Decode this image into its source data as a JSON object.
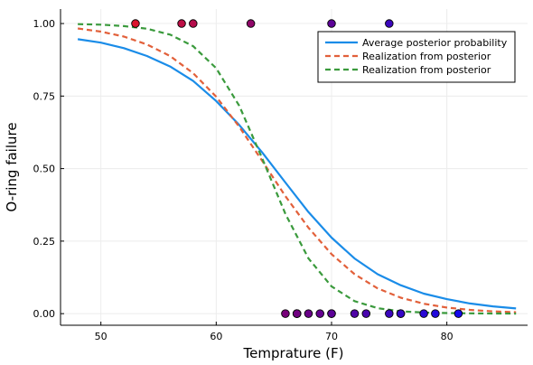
{
  "chart_data": {
    "type": "line",
    "title": "",
    "xlabel": "Temprature (F)",
    "ylabel": "O-ring failure",
    "xlim": [
      46.5,
      87.0
    ],
    "ylim": [
      -0.04,
      1.05
    ],
    "xticks": [
      50,
      60,
      70,
      80
    ],
    "yticks": [
      0.0,
      0.25,
      0.5,
      0.75,
      1.0
    ],
    "ytick_labels": [
      "0.00",
      "0.25",
      "0.50",
      "0.75",
      "1.00"
    ],
    "grid": true,
    "legend_position": "top-right",
    "series": [
      {
        "name": "Average posterior probability",
        "style": "solid",
        "color": "#1a8ce8",
        "x": [
          48,
          50,
          52,
          54,
          56,
          58,
          60,
          62,
          64,
          66,
          68,
          70,
          72,
          74,
          76,
          78,
          80,
          82,
          84,
          86
        ],
        "y": [
          0.946,
          0.934,
          0.915,
          0.888,
          0.852,
          0.802,
          0.733,
          0.65,
          0.555,
          0.452,
          0.35,
          0.262,
          0.19,
          0.136,
          0.098,
          0.069,
          0.05,
          0.035,
          0.025,
          0.018
        ]
      },
      {
        "name": "Realization from posterior",
        "style": "dashed",
        "color": "#e2603a",
        "x": [
          48,
          50,
          52,
          54,
          56,
          58,
          60,
          62,
          64,
          66,
          68,
          70,
          72,
          74,
          76,
          78,
          80,
          82,
          84,
          86
        ],
        "y": [
          0.983,
          0.972,
          0.955,
          0.928,
          0.888,
          0.829,
          0.748,
          0.644,
          0.526,
          0.405,
          0.296,
          0.205,
          0.136,
          0.087,
          0.055,
          0.034,
          0.021,
          0.013,
          0.008,
          0.005
        ]
      },
      {
        "name": "Realization from posterior",
        "style": "dashed",
        "color": "#3a9a3c",
        "x": [
          48,
          50,
          52,
          54,
          56,
          58,
          60,
          62,
          64,
          66,
          68,
          70,
          72,
          74,
          76,
          78,
          80,
          82,
          84,
          86
        ],
        "y": [
          0.998,
          0.996,
          0.991,
          0.982,
          0.962,
          0.922,
          0.846,
          0.716,
          0.534,
          0.344,
          0.19,
          0.094,
          0.043,
          0.019,
          0.008,
          0.004,
          0.002,
          0.001,
          0.0004,
          0.0002
        ]
      }
    ],
    "observations": {
      "name": "",
      "x": [
        53,
        57,
        58,
        63,
        70,
        75,
        66,
        67,
        67,
        67,
        68,
        69,
        70,
        70,
        72,
        73,
        75,
        76,
        76,
        78,
        79,
        81
      ],
      "y": [
        1,
        1,
        1,
        1,
        1,
        1,
        0,
        0,
        0,
        0,
        0,
        0,
        0,
        0,
        0,
        0,
        0,
        0,
        0,
        0,
        0,
        0
      ]
    }
  }
}
